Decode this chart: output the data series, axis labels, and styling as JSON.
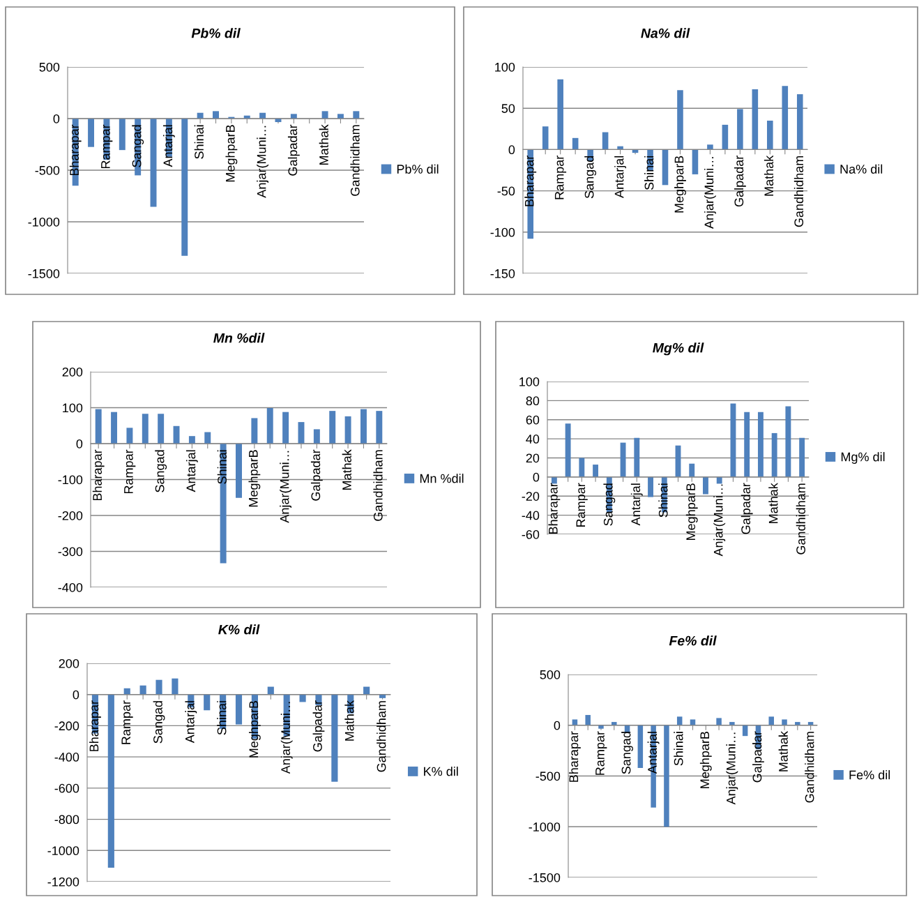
{
  "chart_data": [
    {
      "type": "bar",
      "title": "Pb% dil",
      "categories": [
        "Bharapar",
        null,
        "Rampar",
        null,
        "Sangad",
        null,
        "Antarjal",
        null,
        "Shinai",
        null,
        "MeghparB",
        null,
        "Anjar(Muni…",
        null,
        "Galpadar",
        null,
        "Mathak",
        null,
        "Gandhidham"
      ],
      "series": [
        {
          "name": "Pb% dil",
          "color": "#4f81bd",
          "values": [
            -650,
            -275,
            -400,
            -305,
            -550,
            -855,
            -370,
            -1330,
            56,
            72,
            16,
            29,
            56,
            -34,
            45,
            0,
            72,
            45,
            72
          ]
        }
      ],
      "ylim": [
        -1500,
        500
      ],
      "yticks": [
        -1500,
        -1000,
        -500,
        0,
        500
      ],
      "grid": "y",
      "legend": "right"
    },
    {
      "type": "bar",
      "title": "Na% dil",
      "categories": [
        "Bharapar",
        null,
        "Rampar",
        null,
        "Sangad",
        null,
        "Antarjal",
        null,
        "Shinai",
        null,
        "MeghparB",
        null,
        "Anjar(Muni…",
        null,
        "Galpadar",
        null,
        "Mathak",
        null,
        "Gandhidham"
      ],
      "series": [
        {
          "name": "Na% dil",
          "color": "#4f81bd",
          "values": [
            -108,
            28,
            85,
            14,
            -14,
            21,
            4,
            -4,
            -25,
            -43,
            72,
            -30,
            6,
            30,
            49,
            73,
            35,
            77,
            67
          ]
        }
      ],
      "ylim": [
        -150,
        100
      ],
      "yticks": [
        -150,
        -100,
        -50,
        0,
        50,
        100
      ],
      "grid": "y",
      "legend": "right"
    },
    {
      "type": "bar",
      "title": "Mn %dil",
      "categories": [
        "Bharapar",
        null,
        "Rampar",
        null,
        "Sangad",
        null,
        "Antarjal",
        null,
        "Shinai",
        null,
        "MeghparB",
        null,
        "Anjar(Muni…",
        null,
        "Galpadar",
        null,
        "Mathak",
        null,
        "Gandhidham"
      ],
      "series": [
        {
          "name": "Mn %dil",
          "color": "#4f81bd",
          "values": [
            96,
            88,
            44,
            83,
            83,
            49,
            21,
            32,
            -333,
            -151,
            71,
            99,
            88,
            60,
            40,
            91,
            76,
            96,
            91
          ]
        }
      ],
      "ylim": [
        -400,
        200
      ],
      "yticks": [
        -400,
        -300,
        -200,
        -100,
        0,
        100,
        200
      ],
      "grid": "y",
      "legend": "right"
    },
    {
      "type": "bar",
      "title": "Mg% dil",
      "categories": [
        "Bharapar",
        null,
        "Rampar",
        null,
        "Sangad",
        null,
        "Antarjal",
        null,
        "Shinai",
        null,
        "MeghparB",
        null,
        "Anjar(Muni…",
        null,
        "Galpadar",
        null,
        "Mathak",
        null,
        "Gandhidham"
      ],
      "series": [
        {
          "name": "Mg% dil",
          "color": "#4f81bd",
          "values": [
            -7,
            56,
            20,
            13,
            -37,
            36,
            41,
            -21,
            -37,
            33,
            14,
            -18,
            -7,
            77,
            68,
            68,
            46,
            74,
            41
          ]
        }
      ],
      "ylim": [
        -60,
        100
      ],
      "yticks": [
        -60,
        -40,
        -20,
        0,
        20,
        40,
        60,
        80,
        100
      ],
      "grid": "y",
      "legend": "right"
    },
    {
      "type": "bar",
      "title": "K% dil",
      "categories": [
        "Bharapar",
        null,
        "Rampar",
        null,
        "Sangad",
        null,
        "Antarjal",
        null,
        "Shinai",
        null,
        "MeghparB",
        null,
        "Anjar(Muni…",
        null,
        "Galpadar",
        null,
        "Mathak",
        null,
        "Gandhidham"
      ],
      "series": [
        {
          "name": "K% dil",
          "color": "#4f81bd",
          "values": [
            -250,
            -1110,
            40,
            58,
            94,
            103,
            -83,
            -101,
            -220,
            -192,
            -283,
            50,
            -268,
            -48,
            -68,
            -559,
            -121,
            50,
            -23
          ]
        }
      ],
      "ylim": [
        -1200,
        200
      ],
      "yticks": [
        -1200,
        -1000,
        -800,
        -600,
        -400,
        -200,
        0,
        200
      ],
      "grid": "y",
      "legend": "right"
    },
    {
      "type": "bar",
      "title": "Fe% dil",
      "categories": [
        "Bharapar",
        null,
        "Rampar",
        null,
        "Sangad",
        null,
        "Antarjal",
        null,
        "Shinai",
        null,
        "MeghparB",
        null,
        "Anjar(Muni…",
        null,
        "Galpadar",
        null,
        "Mathak",
        null,
        "Gandhidham"
      ],
      "series": [
        {
          "name": "Fe% dil",
          "color": "#4f81bd",
          "values": [
            57,
            101,
            -34,
            32,
            -76,
            -421,
            -811,
            -1000,
            85,
            57,
            0,
            71,
            32,
            -106,
            -237,
            85,
            57,
            32,
            32
          ]
        }
      ],
      "ylim": [
        -1500,
        500
      ],
      "yticks": [
        -1500,
        -1000,
        -500,
        0,
        500
      ],
      "grid": "y",
      "legend": "right"
    }
  ]
}
